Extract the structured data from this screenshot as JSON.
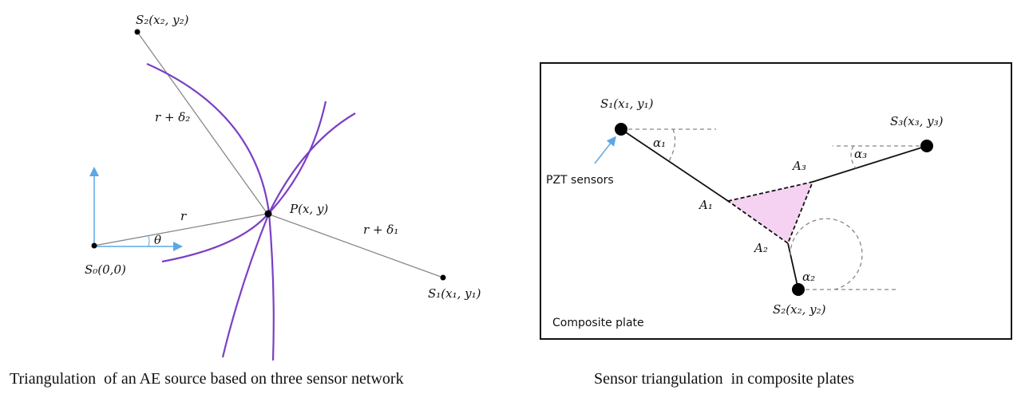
{
  "left_diagram": {
    "caption": "Triangulation  of an AE source based on three sensor network",
    "labels": {
      "s2": "S₂(x₂, y₂)",
      "s1": "S₁(x₁, y₁)",
      "s0": "S₀(0,0)",
      "p": "P(x, y)",
      "r": "r",
      "r_delta2": "r + δ₂",
      "r_delta1": "r + δ₁",
      "theta": "θ"
    },
    "colors": {
      "arcs": "#7b3fc4",
      "axes": "#5aa7e6",
      "lines": "#888888"
    }
  },
  "right_diagram": {
    "caption": "Sensor triangulation  in composite plates",
    "labels": {
      "s1": "S₁(x₁, y₁)",
      "s2": "S₂(x₂, y₂)",
      "s3": "S₃(x₃, y₃)",
      "a1": "A₁",
      "a2": "A₂",
      "a3": "A₃",
      "alpha1": "α₁",
      "alpha2": "α₂",
      "alpha3": "α₃",
      "pzt": "PZT sensors",
      "plate": "Composite plate"
    },
    "colors": {
      "triangle_fill": "#f6d2f2",
      "pointer": "#5aa7e6"
    }
  }
}
